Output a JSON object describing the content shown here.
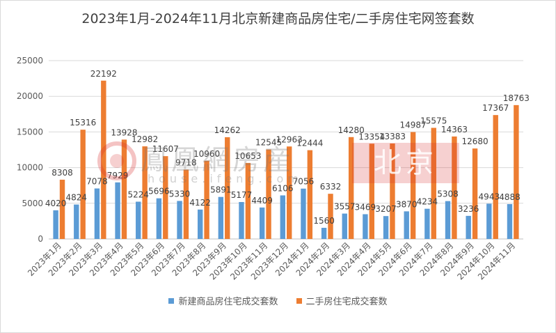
{
  "chart_data": {
    "type": "bar",
    "title": "2023年1月-2024年11月北京新建商品房住宅/二手房住宅网签套数",
    "categories": [
      "2023年1月",
      "2023年2月",
      "2023年3月",
      "2023年4月",
      "2023年5月",
      "2023年6月",
      "2023年7月",
      "2023年8月",
      "2023年9月",
      "2023年10月",
      "2023年11月",
      "2023年12月",
      "2024年1月",
      "2024年2月",
      "2024年3月",
      "2024年4月",
      "2024年5月",
      "2024年6月",
      "2024年7月",
      "2024年8月",
      "2024年9月",
      "2024年10月",
      "2024年11月"
    ],
    "series": [
      {
        "name": "新建商品房住宅成交套数",
        "color": "#5b9bd5",
        "values": [
          4020,
          4824,
          7078,
          7929,
          5224,
          5696,
          5330,
          4122,
          5891,
          5177,
          4409,
          6106,
          7056,
          1560,
          3557,
          3469,
          3207,
          3870,
          4234,
          5308,
          3236,
          4943,
          4888
        ]
      },
      {
        "name": "二手房住宅成交套数",
        "color": "#ed7d31",
        "values": [
          8308,
          15316,
          22192,
          13928,
          12982,
          11607,
          9718,
          10960,
          14262,
          10653,
          12545,
          12963,
          12444,
          6332,
          14280,
          13354,
          13383,
          14987,
          15575,
          14363,
          12680,
          17367,
          18763
        ]
      }
    ],
    "xlabel": "",
    "ylabel": "",
    "ylim": [
      0,
      25000
    ],
    "yticks": [
      0,
      5000,
      10000,
      15000,
      20000,
      25000
    ],
    "grid": true,
    "legend_position": "bottom",
    "data_labels": true
  },
  "watermark": {
    "brand": "鳳凰網房産",
    "domain": "house.ifeng.com",
    "city": "北京"
  }
}
